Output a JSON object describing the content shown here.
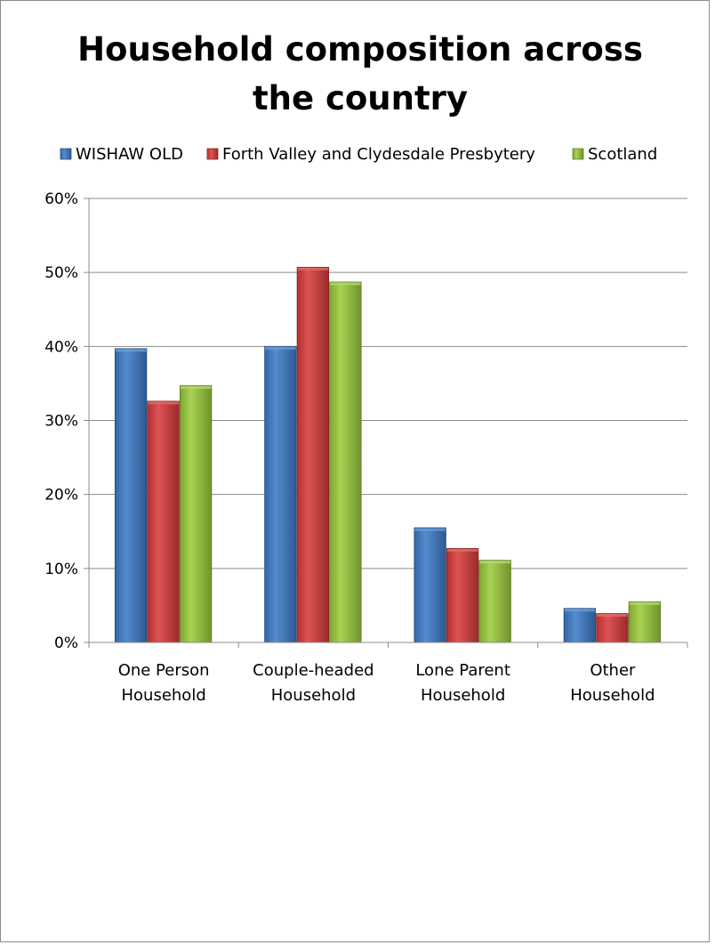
{
  "chart_data": {
    "type": "bar",
    "title_lines": [
      "Household composition across",
      "the country"
    ],
    "categories": [
      [
        "One Person",
        "Household"
      ],
      [
        "Couple-headed",
        "Household"
      ],
      [
        "Lone Parent",
        "Household"
      ],
      [
        "Other",
        "Household"
      ]
    ],
    "series": [
      {
        "name": "WISHAW OLD",
        "values": [
          39.7,
          40.0,
          15.5,
          4.6
        ],
        "color": "#3d7cc9"
      },
      {
        "name": "Forth Valley and Clydesdale Presbytery",
        "values": [
          32.6,
          50.7,
          12.7,
          3.9
        ],
        "color": "#d93b3b"
      },
      {
        "name": "Scotland",
        "values": [
          34.7,
          48.7,
          11.1,
          5.5
        ],
        "color": "#9ccc3c"
      }
    ],
    "ylim": [
      0,
      60
    ],
    "yticks": [
      "0%",
      "10%",
      "20%",
      "30%",
      "40%",
      "50%",
      "60%"
    ],
    "grid": true,
    "legend_position": "top"
  }
}
